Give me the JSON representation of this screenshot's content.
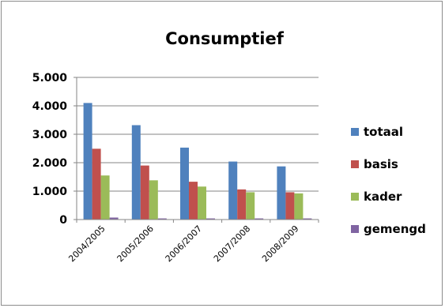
{
  "chart_data": {
    "type": "bar",
    "title": "Consumptief",
    "xlabel": "",
    "ylabel": "",
    "ylim": [
      0,
      5000
    ],
    "yticks": [
      "0",
      "1.000",
      "2.000",
      "3.000",
      "4.000",
      "5.000"
    ],
    "categories": [
      "2004/2005",
      "2005/2006",
      "2006/2007",
      "2007/2008",
      "2008/2009"
    ],
    "series": [
      {
        "name": "totaal",
        "color": "#4f81bd",
        "values": [
          4100,
          3320,
          2530,
          2040,
          1870
        ]
      },
      {
        "name": "basis",
        "color": "#c0504d",
        "values": [
          2490,
          1900,
          1330,
          1060,
          960
        ]
      },
      {
        "name": "kader",
        "color": "#9bbb59",
        "values": [
          1550,
          1380,
          1160,
          960,
          920
        ]
      },
      {
        "name": "gemengd",
        "color": "#8064a2",
        "values": [
          70,
          40,
          40,
          40,
          40
        ]
      }
    ],
    "grid": true,
    "legend": "right"
  }
}
